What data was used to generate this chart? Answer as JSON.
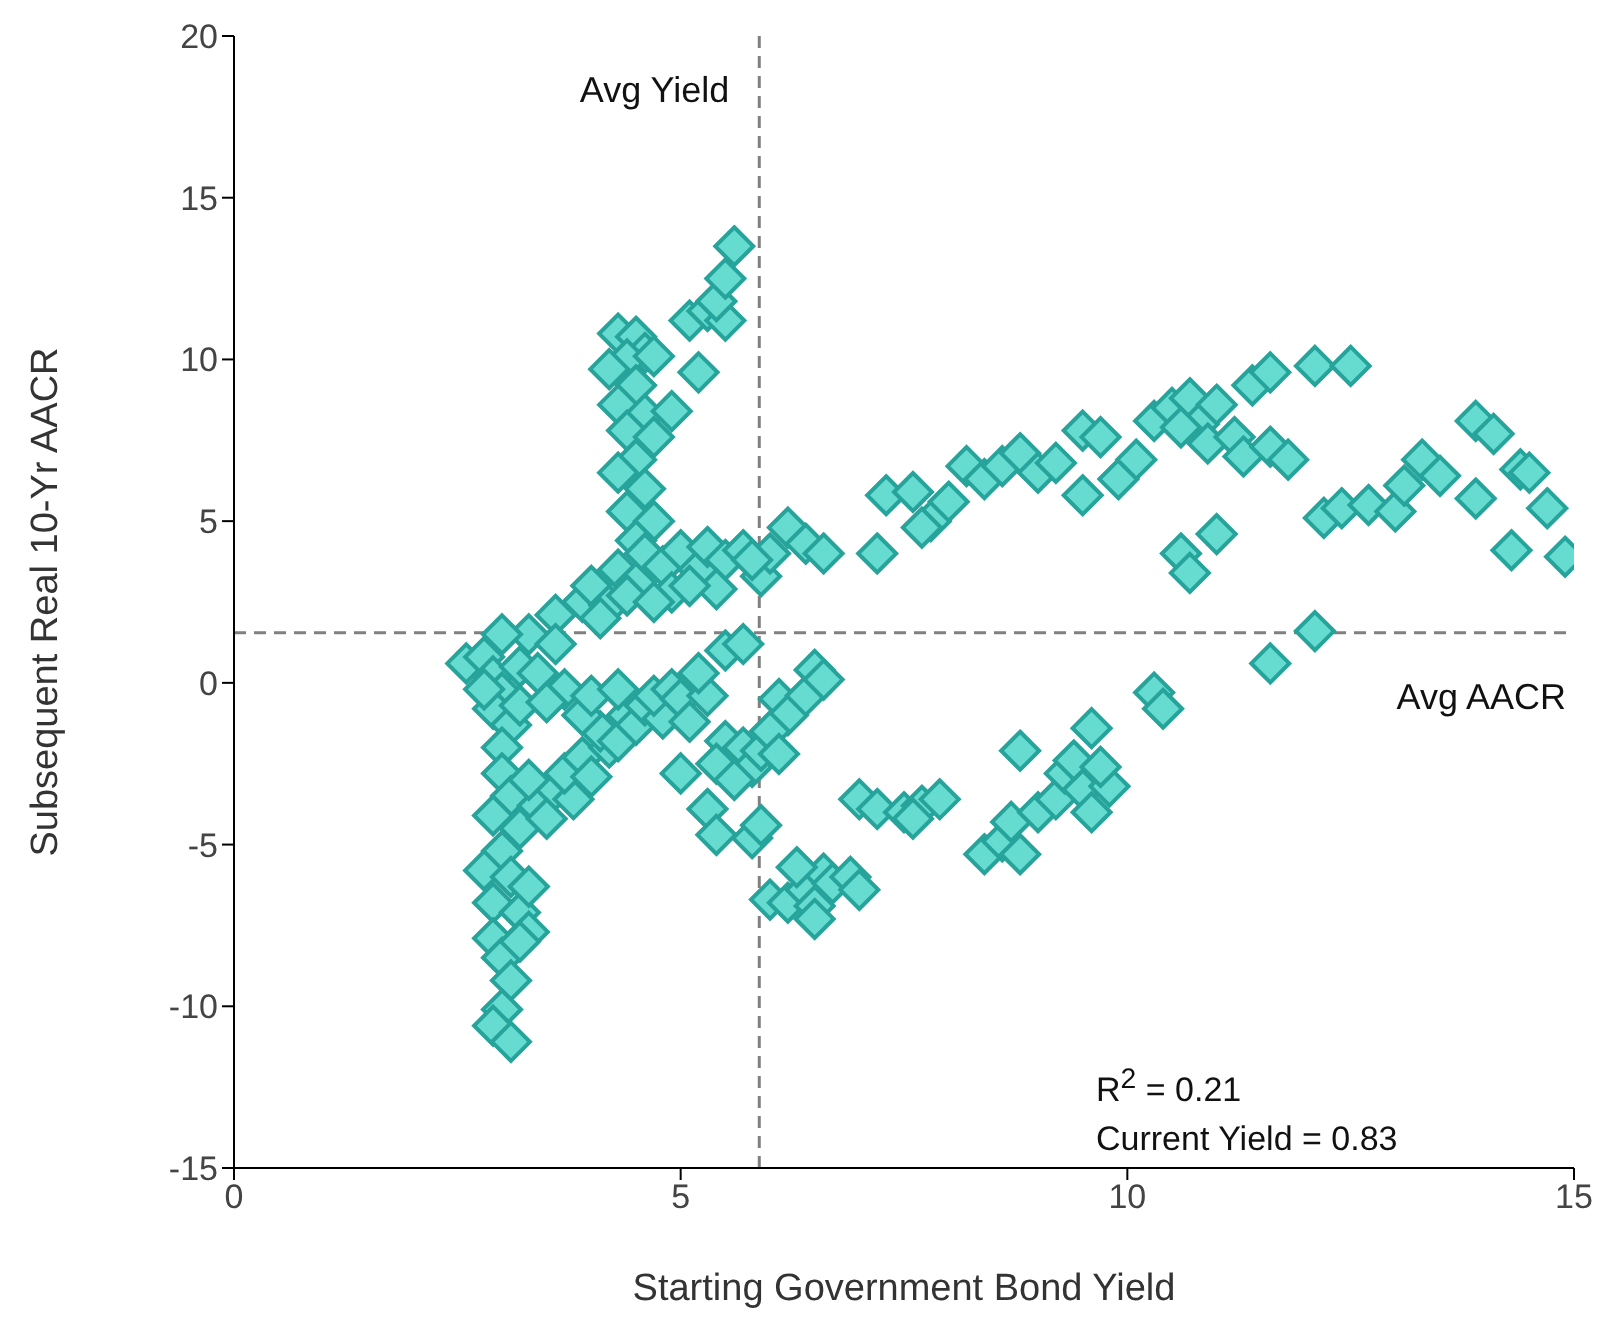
{
  "chart_data": {
    "type": "scatter",
    "xlabel": "Starting Government Bond Yield",
    "ylabel": "Subsequent Real 10-Yr AACR",
    "xlim": [
      0,
      15
    ],
    "xticks": [
      0,
      5,
      10,
      15
    ],
    "ylim": [
      -15,
      20
    ],
    "yticks": [
      -15,
      -10,
      -5,
      0,
      5,
      10,
      15,
      20
    ],
    "grid": false,
    "legend": false,
    "marker": "diamond",
    "ref_lines": [
      {
        "axis": "x",
        "value": 5.88,
        "label": "Avg Yield",
        "color": "#808080",
        "line_style": "dashed"
      },
      {
        "axis": "y",
        "value": 1.55,
        "label": "Avg AACR",
        "color": "#808080",
        "line_style": "dashed"
      }
    ],
    "annotations": [
      "R$^{2}$ = 0.21",
      "Current Yield = 0.83"
    ],
    "series": [
      {
        "color": "#66dcd0",
        "x": [
          4.3,
          4.5,
          4.6,
          4.4,
          4.2,
          4.7,
          4.5,
          4.3,
          4.6,
          4.4,
          4.7,
          4.5,
          4.9,
          4.3,
          4.6,
          4.4,
          4.7,
          4.5,
          5.2,
          5.1,
          5.3,
          5.5,
          5.4,
          5.5,
          5.6,
          3.6,
          3.9,
          4.0,
          4.2,
          4.3,
          4.5,
          4.6,
          4.8,
          4.9,
          5.0,
          5.2,
          5.3,
          5.5,
          5.4,
          5.7,
          5.9,
          6.0,
          6.2,
          6.4,
          6.6,
          4.1,
          4.4,
          5.1,
          5.8,
          4.7,
          2.6,
          2.8,
          2.9,
          3.0,
          3.2,
          3.3,
          2.9,
          3.1,
          3.0,
          3.2,
          3.4,
          3.6,
          3.0,
          2.8,
          3.0,
          3.1,
          2.9,
          3.2,
          3.0,
          2.8,
          3.1,
          2.9,
          3.2,
          2.9,
          3.3,
          3.0,
          3.1,
          3.0,
          2.9,
          3.1,
          3.2,
          3.3,
          3.4,
          3.6,
          3.8,
          3.7,
          3.9,
          4.0,
          4.2,
          4.1,
          4.3,
          4.4,
          4.5,
          4.6,
          4.8,
          3.5,
          3.3,
          3.9,
          3.7,
          3.5,
          4.0,
          4.3,
          4.7,
          4.9,
          5.0,
          5.1,
          5.3,
          5.2,
          5.5,
          5.4,
          5.7,
          5.8,
          5.6,
          5.9,
          5.5,
          5.7,
          5.0,
          5.3,
          5.4,
          5.8,
          5.9,
          6.0,
          6.2,
          6.4,
          6.5,
          6.6,
          6.7,
          6.5,
          6.3,
          6.9,
          7.0,
          6.1,
          6.2,
          6.4,
          6.5,
          6.6,
          6.0,
          6.1,
          7.0,
          7.2,
          7.5,
          7.7,
          7.9,
          7.6,
          8.4,
          8.6,
          8.7,
          8.8,
          9.0,
          9.2,
          9.3,
          9.5,
          8.8,
          9.4,
          9.6,
          9.8,
          9.7,
          9.6,
          10.3,
          10.4,
          11.6,
          12.1,
          7.2,
          7.3,
          7.6,
          7.8,
          7.7,
          8.0,
          8.2,
          8.4,
          8.6,
          8.8,
          9.0,
          9.2,
          9.5,
          9.5,
          9.7,
          9.9,
          10.1,
          10.3,
          10.5,
          10.7,
          10.8,
          10.9,
          11.0,
          11.2,
          11.3,
          10.6,
          11.4,
          11.6,
          12.1,
          12.5,
          11.6,
          11.8,
          10.6,
          10.7,
          11.0,
          12.2,
          12.4,
          12.7,
          13.0,
          13.1,
          13.3,
          13.5,
          13.9,
          13.9,
          14.1,
          14.4,
          14.5,
          14.7,
          14.3,
          14.9
        ],
        "values": [
          10.8,
          10.7,
          10.2,
          10.0,
          9.7,
          10.1,
          9.2,
          8.6,
          8.3,
          7.8,
          7.6,
          6.9,
          8.4,
          6.5,
          6.0,
          5.3,
          5.0,
          4.4,
          9.6,
          11.2,
          11.5,
          11.2,
          11.8,
          12.5,
          13.5,
          2.1,
          2.5,
          3.0,
          2.4,
          3.5,
          3.1,
          4.0,
          3.6,
          2.8,
          4.1,
          3.5,
          4.2,
          3.8,
          2.9,
          4.1,
          3.3,
          4.0,
          4.8,
          4.3,
          4.0,
          2.0,
          2.7,
          3.0,
          3.8,
          2.5,
          0.6,
          0.8,
          0.2,
          -0.3,
          0.5,
          1.5,
          -0.8,
          -1.3,
          -2.0,
          -0.7,
          0.3,
          1.2,
          1.5,
          -0.2,
          -2.8,
          -3.5,
          -4.1,
          -4.5,
          -5.2,
          -5.8,
          -6.0,
          -6.8,
          -7.1,
          -7.9,
          -7.7,
          -8.5,
          -9.2,
          -10.1,
          -10.6,
          -11.1,
          -8.0,
          -6.3,
          -3.8,
          -3.3,
          -3.6,
          -2.8,
          -2.3,
          -2.9,
          -2.0,
          -1.5,
          -1.8,
          -1.0,
          -1.3,
          -0.7,
          -1.1,
          -4.2,
          -3.0,
          -1.0,
          -0.2,
          -0.6,
          -0.4,
          -0.2,
          -0.4,
          -0.2,
          -0.5,
          -1.2,
          -0.4,
          0.3,
          -1.8,
          -2.5,
          -2.0,
          -2.6,
          -3.0,
          -2.1,
          1.0,
          1.2,
          -2.8,
          -3.9,
          -4.7,
          -4.8,
          -4.4,
          -6.7,
          -6.8,
          -6.4,
          -6.9,
          -5.9,
          -6.2,
          -7.3,
          -5.7,
          -6.0,
          -6.4,
          -0.5,
          -1.0,
          -0.4,
          0.4,
          0.1,
          -1.5,
          -2.2,
          -3.6,
          -3.9,
          -4.0,
          -3.8,
          -3.6,
          -4.2,
          -5.3,
          -4.9,
          -4.3,
          -5.3,
          -4.0,
          -3.6,
          -2.8,
          -3.3,
          -2.1,
          -2.4,
          -4.0,
          -3.2,
          -2.6,
          -1.4,
          -0.3,
          -0.8,
          0.6,
          1.6,
          4.0,
          5.8,
          5.9,
          5.0,
          4.8,
          5.6,
          6.7,
          6.3,
          6.7,
          7.1,
          6.5,
          6.8,
          5.8,
          7.8,
          7.6,
          6.3,
          6.9,
          8.1,
          8.5,
          8.8,
          8.0,
          7.4,
          8.6,
          7.6,
          7.0,
          7.9,
          9.2,
          9.6,
          9.8,
          9.8,
          7.3,
          6.9,
          4.0,
          3.4,
          4.6,
          5.1,
          5.4,
          5.5,
          5.3,
          6.1,
          6.9,
          6.4,
          5.7,
          8.1,
          7.7,
          6.6,
          6.5,
          5.4,
          4.1,
          3.9
        ]
      }
    ]
  }
}
